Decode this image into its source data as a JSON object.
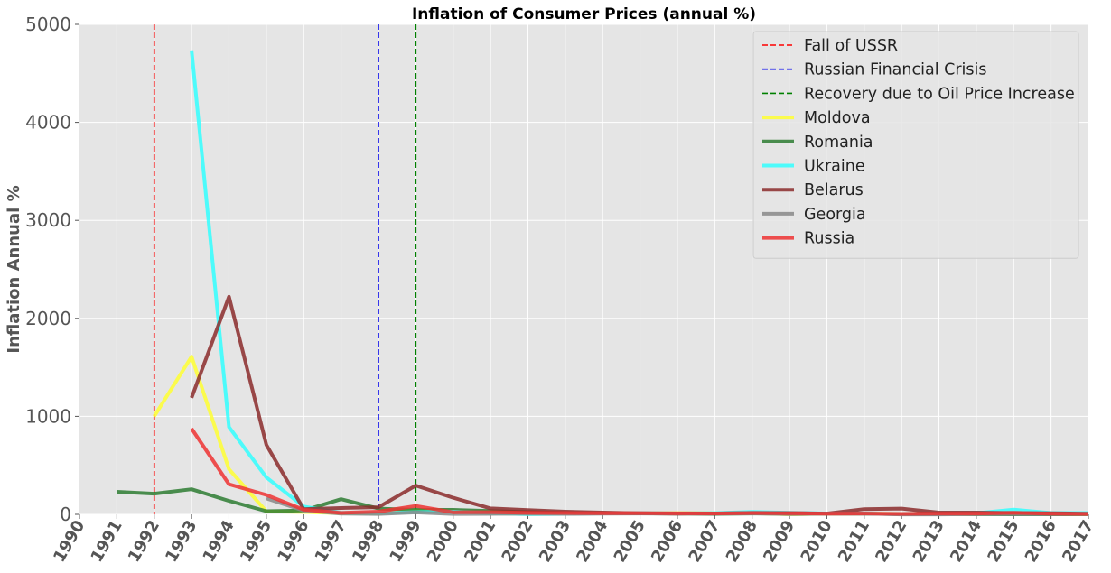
{
  "chart_data": {
    "type": "line",
    "title": "Inflation of Consumer Prices (annual %)",
    "xlabel": "",
    "ylabel": "Inflation Annual %",
    "xlim": [
      1990,
      2017
    ],
    "ylim": [
      0,
      5000
    ],
    "yticks": [
      0,
      1000,
      2000,
      3000,
      4000,
      5000
    ],
    "xticks": [
      1990,
      1991,
      1992,
      1993,
      1994,
      1995,
      1996,
      1997,
      1998,
      1999,
      2000,
      2001,
      2002,
      2003,
      2004,
      2005,
      2006,
      2007,
      2008,
      2009,
      2010,
      2011,
      2012,
      2013,
      2014,
      2015,
      2016,
      2017
    ],
    "grid": true,
    "legend_position": "top-right",
    "vlines": [
      {
        "label": "Fall of USSR",
        "x": 1992,
        "color": "#ff0000"
      },
      {
        "label": "Russian Financial Crisis",
        "x": 1998,
        "color": "#0000ee"
      },
      {
        "label": "Recovery due to Oil Price Increase",
        "x": 1999,
        "color": "#008000"
      }
    ],
    "series": [
      {
        "name": "Moldova",
        "color": "#ffff33",
        "x": [
          1992,
          1993,
          1994,
          1995,
          1996,
          1997,
          1998,
          1999,
          2000,
          2001,
          2002,
          2003,
          2004,
          2005,
          2006,
          2007,
          2008,
          2009,
          2010,
          2011,
          2012,
          2013,
          2014,
          2015,
          2016,
          2017
        ],
        "values": [
          1000,
          1610,
          460,
          30,
          24,
          12,
          8,
          39,
          31,
          10,
          5,
          12,
          12,
          12,
          13,
          12,
          13,
          0,
          7,
          8,
          5,
          5,
          5,
          10,
          6,
          7
        ]
      },
      {
        "name": "Romania",
        "color": "#2e7d32",
        "x": [
          1991,
          1992,
          1993,
          1994,
          1995,
          1996,
          1997,
          1998,
          1999,
          2000,
          2001,
          2002,
          2003,
          2004,
          2005,
          2006,
          2007,
          2008,
          2009,
          2010,
          2011,
          2012,
          2013,
          2014,
          2015,
          2016,
          2017
        ],
        "values": [
          230,
          211,
          256,
          137,
          32,
          39,
          155,
          59,
          46,
          46,
          34,
          23,
          15,
          12,
          9,
          7,
          5,
          8,
          6,
          6,
          6,
          3,
          4,
          1,
          0,
          0,
          1
        ]
      },
      {
        "name": "Ukraine",
        "color": "#33ffff",
        "x": [
          1993,
          1994,
          1995,
          1996,
          1997,
          1998,
          1999,
          2000,
          2001,
          2002,
          2003,
          2004,
          2005,
          2006,
          2007,
          2008,
          2009,
          2010,
          2011,
          2012,
          2013,
          2014,
          2015,
          2016,
          2017
        ],
        "values": [
          4735,
          891,
          377,
          80,
          16,
          11,
          23,
          28,
          12,
          1,
          5,
          9,
          14,
          9,
          13,
          25,
          16,
          9,
          8,
          1,
          0,
          12,
          49,
          14,
          14
        ]
      },
      {
        "name": "Belarus",
        "color": "#8b2c2c",
        "x": [
          1993,
          1994,
          1995,
          1996,
          1997,
          1998,
          1999,
          2000,
          2001,
          2002,
          2003,
          2004,
          2005,
          2006,
          2007,
          2008,
          2009,
          2010,
          2011,
          2012,
          2013,
          2014,
          2015,
          2016,
          2017
        ],
        "values": [
          1190,
          2221,
          709,
          53,
          64,
          73,
          294,
          169,
          61,
          43,
          28,
          18,
          10,
          7,
          8,
          15,
          13,
          8,
          53,
          59,
          18,
          18,
          14,
          12,
          6
        ]
      },
      {
        "name": "Georgia",
        "color": "#888888",
        "x": [
          1995,
          1996,
          1997,
          1998,
          1999,
          2000,
          2001,
          2002,
          2003,
          2004,
          2005,
          2006,
          2007,
          2008,
          2009,
          2010,
          2011,
          2012,
          2013,
          2014,
          2015,
          2016,
          2017
        ],
        "values": [
          163,
          39,
          7,
          4,
          19,
          4,
          5,
          6,
          5,
          6,
          8,
          9,
          9,
          10,
          2,
          7,
          8,
          -1,
          -1,
          3,
          4,
          2,
          6
        ]
      },
      {
        "name": "Russia",
        "color": "#ee3333",
        "x": [
          1993,
          1994,
          1995,
          1996,
          1997,
          1998,
          1999,
          2000,
          2001,
          2002,
          2003,
          2004,
          2005,
          2006,
          2007,
          2008,
          2009,
          2010,
          2011,
          2012,
          2013,
          2014,
          2015,
          2016,
          2017
        ],
        "values": [
          875,
          307,
          198,
          48,
          15,
          28,
          86,
          21,
          22,
          16,
          14,
          11,
          13,
          10,
          9,
          14,
          12,
          7,
          8,
          5,
          7,
          8,
          16,
          7,
          4
        ]
      }
    ]
  }
}
